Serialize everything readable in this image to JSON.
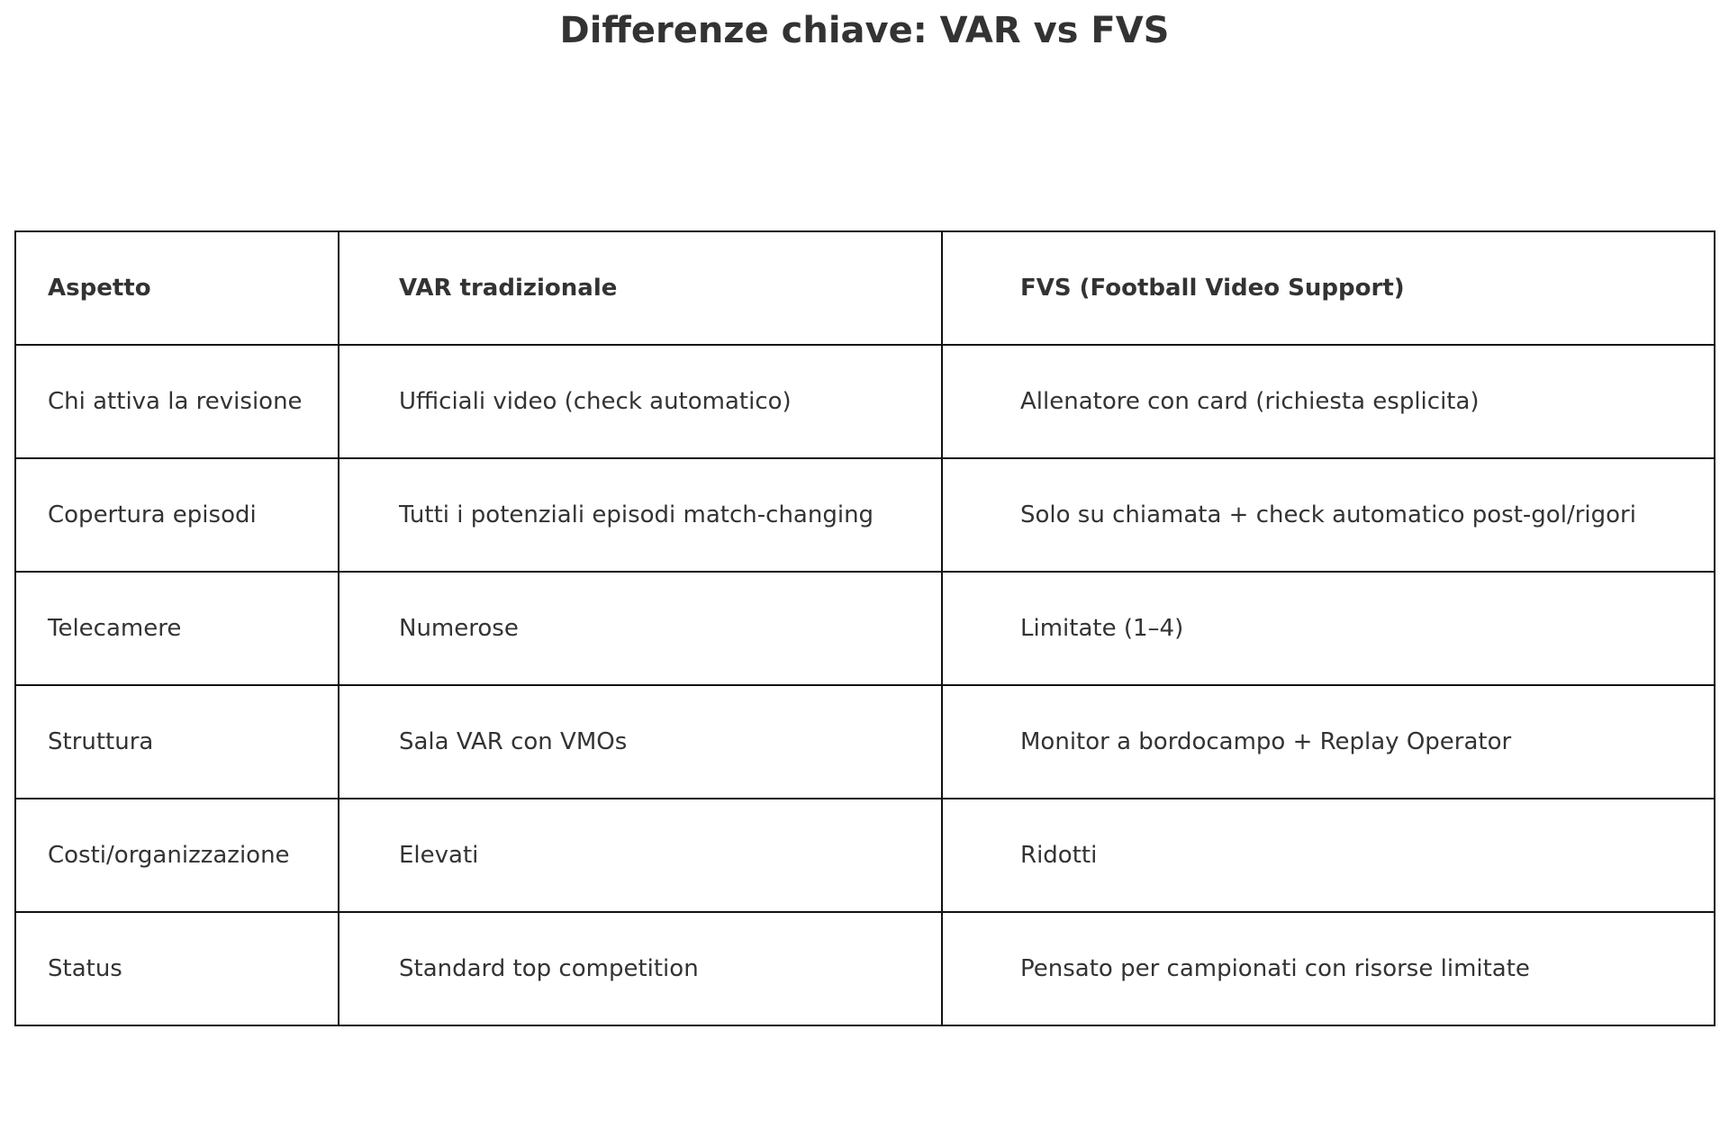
{
  "title": "Differenze chiave: VAR vs FVS",
  "table": {
    "headers": [
      "Aspetto",
      "VAR tradizionale",
      "FVS (Football Video Support)"
    ],
    "rows": [
      [
        "Chi attiva la revisione",
        "Ufficiali video (check automatico)",
        "Allenatore con card (richiesta esplicita)"
      ],
      [
        "Copertura episodi",
        "Tutti i potenziali episodi match-changing",
        "Solo su chiamata + check automatico post-gol/rigori"
      ],
      [
        "Telecamere",
        "Numerose",
        "Limitate (1–4)"
      ],
      [
        "Struttura",
        "Sala VAR con VMOs",
        "Monitor a bordocampo + Replay Operator"
      ],
      [
        "Costi/organizzazione",
        "Elevati",
        "Ridotti"
      ],
      [
        "Status",
        "Standard top competition",
        "Pensato per campionati con risorse limitate"
      ]
    ]
  }
}
